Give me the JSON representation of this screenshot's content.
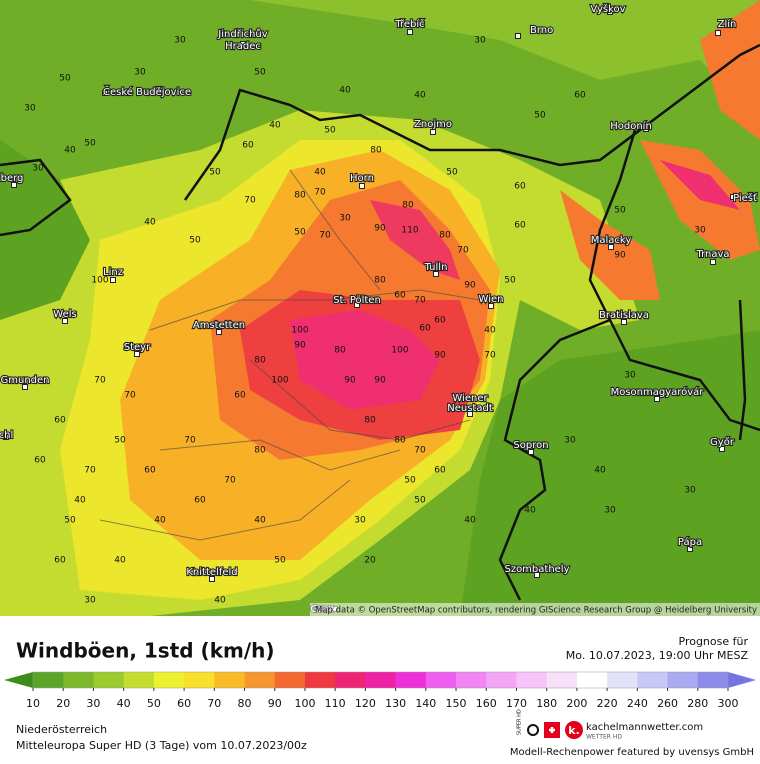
{
  "header": {
    "title": "Windböen, 1std (km/h)",
    "forecast_label": "Prognose für",
    "forecast_time": "Mo. 10.07.2023, 19:00 Uhr MESZ"
  },
  "footer": {
    "region": "Niederösterreich",
    "model": "Mitteleuropa Super HD (3 Tage) vom 10.07.2023/00z",
    "brand": "kachelmannwetter.com",
    "brand_sub": "WETTER HD",
    "super_hd": "SUPER HD",
    "credit": "Modell-Rechenpower featured by uvensys GmbH"
  },
  "map": {
    "attribution": "Map data © OpenStreetMap contributors, rendering GIScience Research Group @ Heidelberg University",
    "cities": [
      "Jindřichův",
      "Hradec",
      "Třebíč",
      "Brno",
      "Vyškov",
      "Zlín",
      "České Budějovice",
      "Znojmo",
      "Hodonín",
      "Horn",
      "Linz",
      "Wels",
      "Steyr",
      "Amstetten",
      "St. Pölten",
      "Tulln",
      "Wien",
      "Malacky",
      "Trnava",
      "Bratislava",
      "Mosonmagyaróvár",
      "Wiener",
      "Neustadt",
      "Sopron",
      "Győr",
      "Gmunden",
      "Szombathely",
      "Pápa",
      "Knittelfeld",
      "Graz",
      "Piešť",
      "berg",
      "chl"
    ],
    "values": [
      30,
      50,
      30,
      50,
      40,
      30,
      50,
      30,
      40,
      30,
      40,
      50,
      60,
      40,
      70,
      50,
      40,
      50,
      80,
      50,
      60,
      70,
      50,
      40,
      30,
      50,
      60,
      80,
      70,
      80,
      90,
      110,
      80,
      60,
      70,
      50,
      40,
      100,
      80,
      90,
      60,
      70,
      90,
      80,
      60,
      70,
      60,
      80,
      90,
      100,
      100,
      90,
      80,
      100,
      90,
      80,
      70,
      60,
      50,
      40,
      30,
      40,
      50,
      50,
      30,
      30,
      40,
      30,
      40,
      90,
      70,
      60,
      50,
      60,
      70,
      80,
      70,
      60,
      50,
      40,
      60,
      40,
      30,
      40,
      50,
      60,
      70,
      70,
      60,
      40,
      20,
      30,
      30
    ]
  },
  "legend": {
    "ticks": [
      10,
      20,
      30,
      40,
      50,
      60,
      70,
      80,
      90,
      100,
      110,
      120,
      130,
      140,
      150,
      160,
      170,
      180,
      200,
      220,
      240,
      260,
      280,
      300
    ],
    "colors": [
      "#3c8c1c",
      "#5aa528",
      "#7cb82a",
      "#9ccb2e",
      "#c4de30",
      "#ecf22e",
      "#fae02a",
      "#f9bb26",
      "#f7952e",
      "#f2682f",
      "#ef3840",
      "#ef2373",
      "#ee22a4",
      "#ed30d8",
      "#ee5ff0",
      "#f185f2",
      "#f4a6f6",
      "#f7c4f9",
      "#f9e0fa",
      "#ffffff",
      "#e2e2f9",
      "#c8c8f6",
      "#aaaaf1",
      "#8b8bea",
      "#7474e2"
    ]
  }
}
